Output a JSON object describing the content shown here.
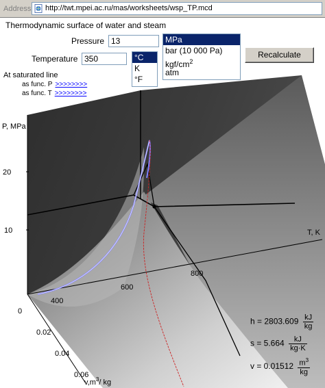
{
  "address_bar": {
    "label": "Address",
    "url": "http://twt.mpei.ac.ru/mas/worksheets/wsp_TP.mcd"
  },
  "page_title": "Thermodynamic surface of water and steam",
  "pressure": {
    "label": "Pressure",
    "value": "13"
  },
  "pressure_units": [
    "MPa",
    "bar (10 000 Pa)",
    "kgf/cm",
    "atm"
  ],
  "pressure_units_sup": "2",
  "pressure_units_selected": "MPa",
  "temperature": {
    "label": "Temperature",
    "value": "350"
  },
  "temperature_units": [
    "°C",
    "K",
    "°F"
  ],
  "temperature_units_selected": "°C",
  "recalculate_label": "Recalculate",
  "saturated": {
    "title": "At saturated line",
    "func_p": {
      "label": "as func. P",
      "link": ">>>>>>>>"
    },
    "func_t": {
      "label": "as func. T",
      "link": ">>>>>>>>"
    }
  },
  "plot": {
    "z_axis_label": "P, MPa",
    "z_ticks": [
      "20",
      "10"
    ],
    "t_axis_label": "T, K",
    "t_ticks": [
      "400",
      "600",
      "800"
    ],
    "v_axis_label": "v,m",
    "v_axis_sup": "3",
    "v_axis_unit": "/ kg",
    "v_ticks": [
      "0",
      "0.02",
      "0.04",
      "0.06"
    ],
    "colors": {
      "saturation_curve": "#8080ff",
      "red_curve": "#cc2222",
      "surface_dark": "#3a3a3a",
      "surface_light": "#e8e8e8"
    }
  },
  "results": {
    "h": {
      "label": "h = 2803.609",
      "num": "kJ",
      "den": "kg"
    },
    "s": {
      "label": "s = 5.664",
      "num": "kJ",
      "den": "kg·K"
    },
    "v": {
      "label": "v = 0.01512",
      "num": "m",
      "num_sup": "3",
      "den": "kg"
    }
  }
}
